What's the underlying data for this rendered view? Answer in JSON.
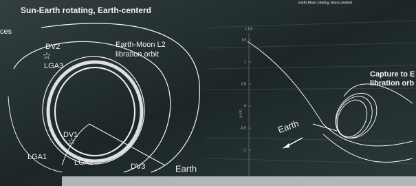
{
  "left_panel": {
    "title": "Sun-Earth rotating, Earth-centerd",
    "partial_label": "ces",
    "labels": {
      "dv2": "DV2",
      "lga3": "LGA3",
      "orbit_line1": "Earth-Moon L2",
      "orbit_line2": "libration orbit",
      "dv1": "DV1",
      "lga1": "LGA1",
      "lga2": "LGA2",
      "dv3": "DV3",
      "earth": "Earth"
    }
  },
  "right_panel": {
    "title": "Earth-Moon rotating, Moon-centerd",
    "axis_exponent": "× 10⁵",
    "yticks": [
      "1.5",
      "1",
      "0.5",
      "0",
      "-0.5",
      "-1"
    ],
    "axis_label": "y, km",
    "labels": {
      "capture_line1": "Capture to E",
      "capture_line2": "libration orb",
      "earth": "Earth"
    }
  }
}
